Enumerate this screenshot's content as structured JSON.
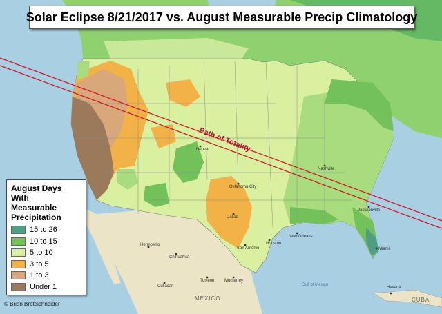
{
  "title": "Solar Eclipse 8/21/2017 vs. August Measurable Precip Climatology",
  "legend": {
    "title": "August Days\nWith\nMeasurable\nPrecipitation",
    "items": [
      {
        "label": "15 to 26",
        "color": "#4e9e84"
      },
      {
        "label": "10 to 15",
        "color": "#72c15b"
      },
      {
        "label": "5 to 10",
        "color": "#d9f0a0"
      },
      {
        "label": "3 to 5",
        "color": "#f2b247"
      },
      {
        "label": "1 to 3",
        "color": "#d8a77a"
      },
      {
        "label": "Under 1",
        "color": "#9b7a5b"
      }
    ]
  },
  "path_label": "Path of Totality",
  "credit": "© Brian Brettschneider",
  "colors": {
    "water": "#a9cfe3",
    "mexico": "#ece4c6",
    "path_line": "#d11a2a",
    "borders": "#777777"
  },
  "places": {
    "hermosillo": "Hermosillo",
    "chihuahua": "Chihuahua",
    "culiacan": "Culiacán",
    "torreon": "Torreón",
    "monterrey": "Monterrey",
    "mexico": "MÉXICO",
    "cuba": "CUBA",
    "havana": "Havana",
    "gulf": "Gulf of Mexico",
    "dallas": "Dallas",
    "san_antonio": "San Antonio",
    "houston": "Houston",
    "oklahoma_city": "Oklahoma City",
    "denver": "Denver",
    "jacksonville": "Jacksonville",
    "miami": "Miami",
    "nashville": "Nashville",
    "new_orleans": "New Orleans"
  }
}
